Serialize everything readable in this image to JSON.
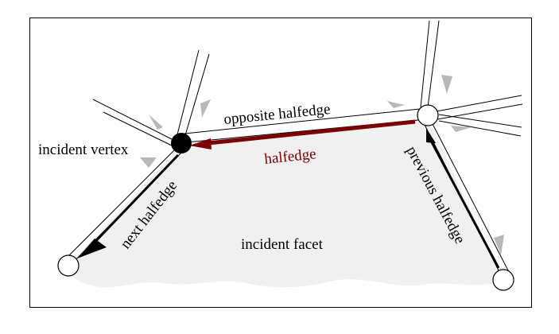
{
  "labels": {
    "opposite_halfedge": "opposite halfedge",
    "halfedge": "halfedge",
    "incident_vertex": "incident vertex",
    "next_halfedge": "next halfedge",
    "previous_halfedge": "previous halfedge",
    "incident_facet": "incident facet"
  },
  "colors": {
    "halfedge": "#7a0000",
    "facet_fill": "#f0f0f0",
    "hint_gray": "#b8b8b8",
    "frame": "#000000"
  }
}
